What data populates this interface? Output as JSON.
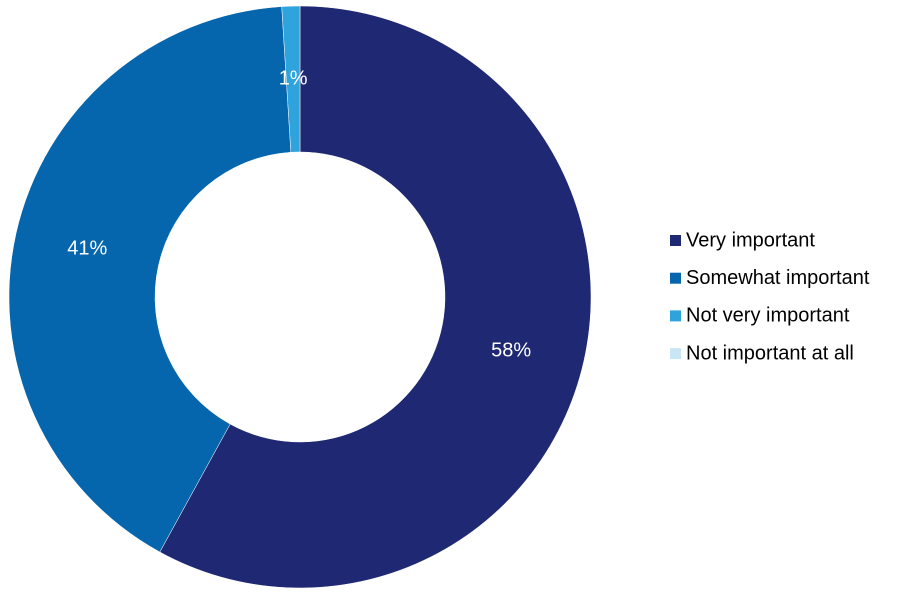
{
  "chart_data": {
    "type": "donut",
    "categories": [
      "Very important",
      "Somewhat important",
      "Not very important",
      "Not important at all"
    ],
    "values": [
      58,
      41,
      1,
      0
    ],
    "value_labels": [
      "58%",
      "41%",
      "1%",
      null
    ],
    "colors": [
      "#1f2872",
      "#0565ad",
      "#2ea3dc",
      "#c9e6f6"
    ],
    "legend": "right"
  }
}
